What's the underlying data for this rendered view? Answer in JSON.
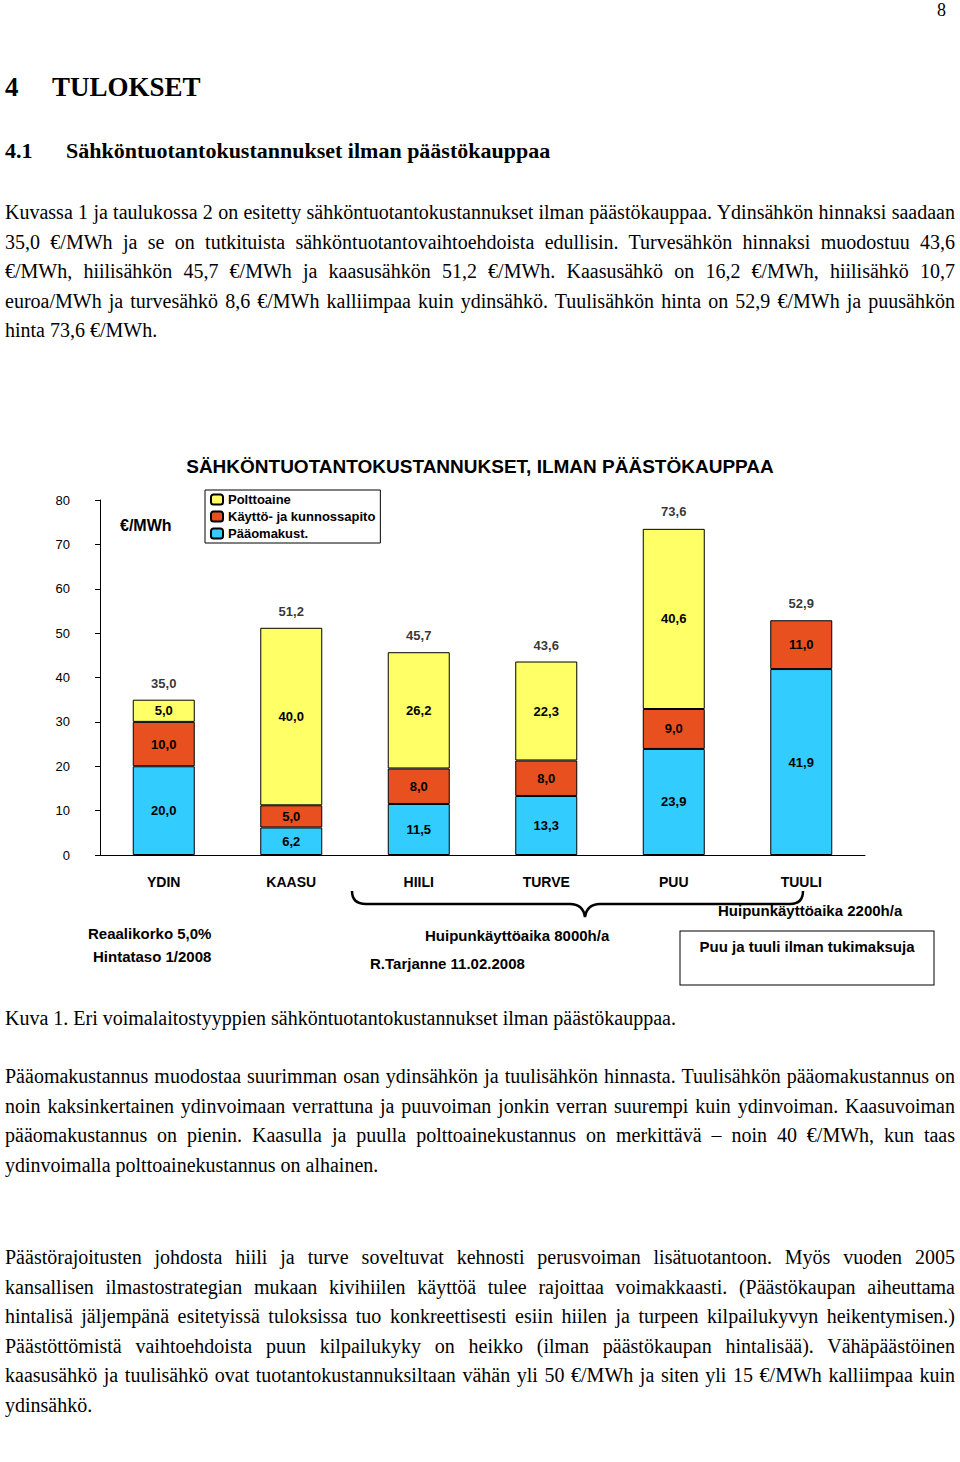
{
  "page_number": "8",
  "heading": {
    "number": "4",
    "text": "TULOKSET"
  },
  "subheading": {
    "number": "4.1",
    "text": "Sähköntuotantokustannukset ilman päästökauppaa"
  },
  "paragraphs_before": [
    "Kuvassa 1 ja taulukossa 2 on esitetty sähköntuotantokustannukset ilman päästökauppaa. Ydinsähkön hinnaksi saadaan 35,0 €/MWh ja se on tutkituista sähköntuotantovaihtoehdoista edullisin. Turvesähkön hinnaksi muodostuu 43,6 €/MWh, hiilisähkön 45,7 €/MWh ja kaasusähkön 51,2 €/MWh. Kaasusähkö on 16,2 €/MWh, hiilisähkö 10,7 euroa/MWh ja turvesähkö 8,6 €/MWh kalliimpaa kuin ydinsähkö. Tuulisähkön hinta on 52,9 €/MWh ja puusähkön hinta 73,6 €/MWh."
  ],
  "chart_data": {
    "type": "bar",
    "stacked": true,
    "title": "SÄHKÖNTUOTANTOKUSTANNUKSET, ILMAN PÄÄSTÖKAUPPAA",
    "y_label": "€/MWh",
    "categories": [
      "YDIN",
      "KAASU",
      "HIILI",
      "TURVE",
      "PUU",
      "TUULI"
    ],
    "series": [
      {
        "name": "Pääomakust.",
        "color": "#33ccff",
        "values": [
          20.0,
          6.2,
          11.5,
          13.3,
          23.9,
          41.9
        ],
        "value_labels": [
          "20,0",
          "6,2",
          "11,5",
          "13,3",
          "23,9",
          "41,9"
        ]
      },
      {
        "name": "Käyttö- ja kunnossapito",
        "color": "#e8501f",
        "values": [
          10.0,
          5.0,
          8.0,
          8.0,
          9.0,
          11.0
        ],
        "value_labels": [
          "10,0",
          "5,0",
          "8,0",
          "8,0",
          "9,0",
          "11,0"
        ]
      },
      {
        "name": "Polttoaine",
        "color": "#ffff66",
        "values": [
          5.0,
          40.0,
          26.2,
          22.3,
          40.6,
          null
        ],
        "value_labels": [
          "5,0",
          "40,0",
          "26,2",
          "22,3",
          "40,6",
          null
        ]
      }
    ],
    "totals": [
      35.0,
      51.2,
      45.7,
      43.6,
      73.6,
      52.9
    ],
    "total_labels": [
      "35,0",
      "51,2",
      "45,7",
      "43,6",
      "73,6",
      "52,9"
    ],
    "data_labels": true,
    "ylim": [
      0,
      80
    ],
    "yticks": [
      0,
      10,
      20,
      30,
      40,
      50,
      60,
      70,
      80
    ],
    "grid": false,
    "legend": "upper left",
    "annotations": {
      "left": [
        "Reaalikorko 5,0%",
        "Hintataso 1/2008"
      ],
      "brace": "Huipunkäyttöaika 8000h/a",
      "author": "R.Tarjanne 11.02.2008",
      "right": "Huipunkäyttöaika 2200h/a",
      "box": "Puu ja tuuli ilman tukimaksuja"
    }
  },
  "caption": "Kuva 1. Eri voimalaitostyyppien sähköntuotantokustannukset ilman päästökauppaa.",
  "paragraphs_after": [
    "Pääomakustannus muodostaa suurimman osan ydinsähkön ja tuulisähkön hinnasta. Tuulisähkön pääomakustannus on noin kaksinkertainen ydinvoimaan verrattuna ja puuvoiman jonkin verran suurempi kuin ydinvoiman. Kaasuvoiman pääomakustannus on pienin. Kaasulla ja puulla polttoainekustannus on merkittävä – noin 40 €/MWh, kun taas ydinvoimalla polttoainekustannus on alhainen.",
    "Päästörajoitusten johdosta hiili ja turve soveltuvat kehnosti perusvoiman lisätuotantoon. Myös vuoden 2005 kansallisen ilmastostrategian mukaan kivihiilen käyttöä tulee rajoittaa voimakkaasti. (Päästökaupan aiheuttama hintalisä jäljempänä esitetyissä tuloksissa tuo konkreettisesti esiin hiilen ja turpeen kilpailukyvyn heikentymisen.) Päästöttömistä vaihtoehdoista puun kilpailukyky on heikko (ilman päästökaupan hintalisää). Vähäpäästöinen kaasusähkö ja tuulisähkö ovat tuotantokustannuksiltaan vähän yli 50 €/MWh ja siten yli 15 €/MWh kalliimpaa kuin ydinsähkö."
  ]
}
